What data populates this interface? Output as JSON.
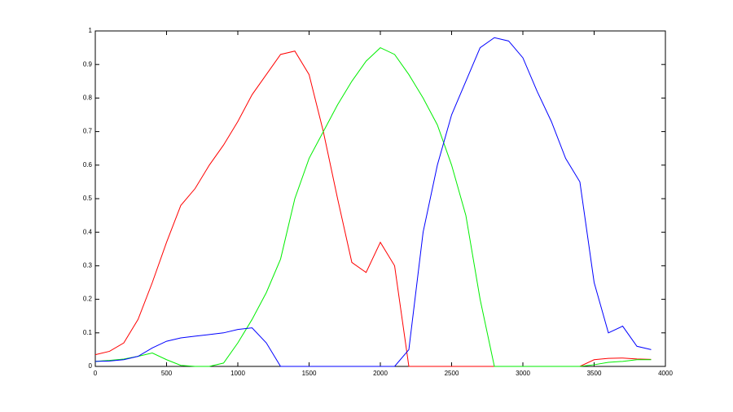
{
  "chart_data": {
    "type": "line",
    "x": [
      0,
      100,
      200,
      300,
      400,
      500,
      600,
      700,
      800,
      900,
      1000,
      1100,
      1200,
      1300,
      1400,
      1500,
      1600,
      1700,
      1800,
      1900,
      2000,
      2100,
      2200,
      2300,
      2400,
      2500,
      2600,
      2700,
      2800,
      2900,
      3000,
      3100,
      3200,
      3300,
      3400,
      3500,
      3600,
      3700,
      3800,
      3900
    ],
    "series": [
      {
        "color": "#ff0000",
        "values": [
          0.035,
          0.045,
          0.07,
          0.14,
          0.25,
          0.37,
          0.48,
          0.53,
          0.6,
          0.66,
          0.73,
          0.81,
          0.87,
          0.93,
          0.94,
          0.87,
          0.7,
          0.5,
          0.31,
          0.28,
          0.37,
          0.3,
          0,
          0,
          0,
          0,
          0,
          0,
          0,
          0,
          0,
          0,
          0,
          0,
          0,
          0.02,
          0.024,
          0.025,
          0.022,
          0.021
        ]
      },
      {
        "color": "#00ee00",
        "values": [
          0.015,
          0.018,
          0.022,
          0.03,
          0.04,
          0.02,
          0.003,
          0,
          0,
          0.01,
          0.07,
          0.14,
          0.22,
          0.32,
          0.5,
          0.62,
          0.7,
          0.78,
          0.85,
          0.91,
          0.95,
          0.93,
          0.87,
          0.8,
          0.72,
          0.6,
          0.45,
          0.2,
          0,
          0,
          0,
          0,
          0,
          0,
          0,
          0.005,
          0.012,
          0.015,
          0.02,
          0.02
        ]
      },
      {
        "color": "#0000ff",
        "values": [
          0.015,
          0.016,
          0.02,
          0.03,
          0.055,
          0.075,
          0.085,
          0.09,
          0.095,
          0.1,
          0.11,
          0.115,
          0.07,
          0,
          0,
          0,
          0,
          0,
          0,
          0,
          0,
          0,
          0.05,
          0.4,
          0.6,
          0.75,
          0.85,
          0.95,
          0.98,
          0.97,
          0.92,
          0.82,
          0.73,
          0.62,
          0.55,
          0.25,
          0.1,
          0.12,
          0.06,
          0.05
        ]
      }
    ],
    "xlim": [
      0,
      4000
    ],
    "xticks": [
      0,
      500,
      1000,
      1500,
      2000,
      2500,
      3000,
      3500,
      4000
    ],
    "ylim": [
      0,
      1
    ],
    "yticks": [
      0,
      0.1,
      0.2,
      0.3,
      0.4,
      0.5,
      0.6,
      0.7,
      0.8,
      0.9,
      1
    ]
  }
}
